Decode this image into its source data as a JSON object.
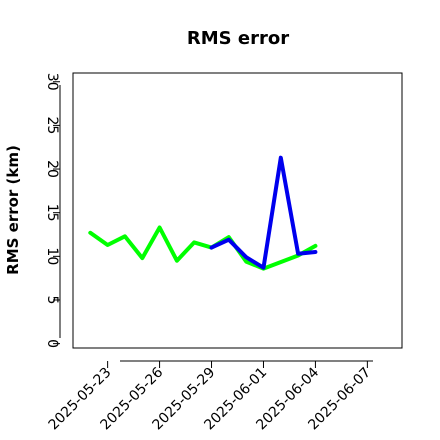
{
  "chart_data": {
    "type": "line",
    "title": "RMS error",
    "xlabel": "",
    "ylabel": "RMS error (km)",
    "x_axis": {
      "type": "date",
      "min": "2025-05-21",
      "max": "2025-06-09",
      "ticks": [
        "2025-05-23",
        "2025-05-26",
        "2025-05-29",
        "2025-06-01",
        "2025-06-04",
        "2025-06-07"
      ],
      "highlight_tick": "2025-05-29",
      "highlight_color": "#228B22",
      "tick_label_rotation": "45"
    },
    "y_axis": {
      "min": -0.5,
      "max": 31,
      "ticks": [
        0,
        5,
        10,
        15,
        20,
        25,
        30
      ],
      "tick_label_rotation": "90"
    },
    "grid": false,
    "legend": "none",
    "series": [
      {
        "color": "#00FF00",
        "points": [
          {
            "x": "2025-05-22",
            "y": 12.7
          },
          {
            "x": "2025-05-23",
            "y": 11.3
          },
          {
            "x": "2025-05-24",
            "y": 12.3
          },
          {
            "x": "2025-05-25",
            "y": 9.8
          },
          {
            "x": "2025-05-26",
            "y": 13.3
          },
          {
            "x": "2025-05-27",
            "y": 9.5
          },
          {
            "x": "2025-05-28",
            "y": 11.6
          },
          {
            "x": "2025-05-29",
            "y": 11.0
          },
          {
            "x": "2025-05-30",
            "y": 12.2
          },
          {
            "x": "2025-05-31",
            "y": 9.4
          },
          {
            "x": "2025-06-01",
            "y": 8.6
          },
          {
            "x": "2025-06-03",
            "y": 10.1
          },
          {
            "x": "2025-06-04",
            "y": 11.2
          }
        ]
      },
      {
        "color": "#0000EE",
        "points": [
          {
            "x": "2025-05-29",
            "y": 11.0
          },
          {
            "x": "2025-05-30",
            "y": 11.9
          },
          {
            "x": "2025-05-31",
            "y": 9.9
          },
          {
            "x": "2025-06-01",
            "y": 8.7
          },
          {
            "x": "2025-06-02",
            "y": 21.3
          },
          {
            "x": "2025-06-03",
            "y": 10.3
          },
          {
            "x": "2025-06-04",
            "y": 10.5
          }
        ]
      }
    ]
  }
}
